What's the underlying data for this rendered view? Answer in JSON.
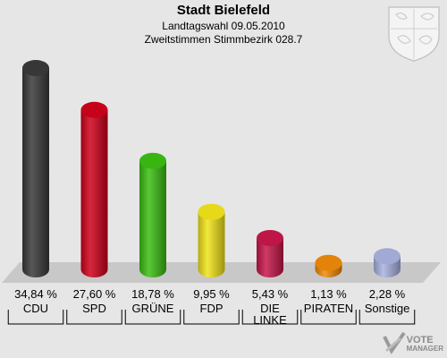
{
  "header": {
    "title": "Stadt Bielefeld",
    "subtitle1": "Landtagswahl 09.05.2010",
    "subtitle2": "Zweitstimmen Stimmbezirk 028.7"
  },
  "watermark": {
    "line1": "VOTE",
    "line2": "MANAGER"
  },
  "chart_data": {
    "type": "bar",
    "title": "Stadt Bielefeld",
    "subtitle": "Landtagswahl 09.05.2010 — Zweitstimmen Stimmbezirk 028.7",
    "categories": [
      "CDU",
      "SPD",
      "GRÜNE",
      "FDP",
      "DIE LINKE",
      "PIRATEN",
      "Sonstige"
    ],
    "category_lines": [
      [
        "CDU"
      ],
      [
        "SPD"
      ],
      [
        "GRÜNE"
      ],
      [
        "FDP"
      ],
      [
        "DIE",
        "LINKE"
      ],
      [
        "PIRATEN"
      ],
      [
        "Sonstige"
      ]
    ],
    "values": [
      34.84,
      27.6,
      18.78,
      9.95,
      5.43,
      1.13,
      2.28
    ],
    "value_labels": [
      "34,84 %",
      "27,60 %",
      "18,78 %",
      "9,95 %",
      "5,43 %",
      "1,13 %",
      "2,28 %"
    ],
    "colors": [
      "#3a3a3a",
      "#d0021b",
      "#3cbf12",
      "#f2e41a",
      "#c8174a",
      "#f08a0a",
      "#a9b3e0"
    ],
    "ylim": [
      0,
      35
    ],
    "grid": false,
    "legend": "none"
  }
}
